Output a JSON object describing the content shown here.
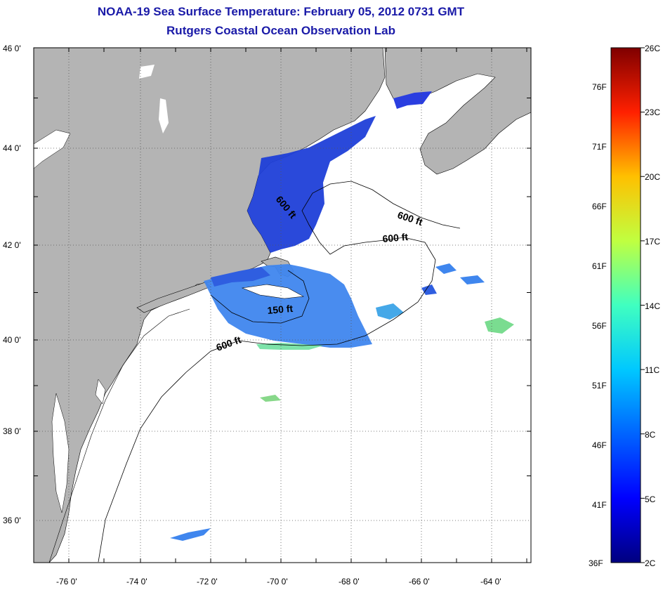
{
  "header": {
    "title": "NOAA-19 Sea Surface Temperature:  February 05, 2012 0731 GMT",
    "subtitle": "Rutgers Coastal Ocean Observation Lab"
  },
  "map": {
    "lat_labels": [
      "46 0'",
      "44 0'",
      "42 0'",
      "40 0'",
      "38 0'",
      "36 0'"
    ],
    "lon_labels": [
      "-76 0'",
      "-74 0'",
      "-72 0'",
      "-70 0'",
      "-68 0'",
      "-66 0'",
      "-64 0'"
    ],
    "contour_labels": [
      "600 ft",
      "600 ft",
      "600 ft",
      "150 ft",
      "600 ft"
    ],
    "colors": {
      "land": "#b4b4b4",
      "ocean": "#ffffff",
      "grid": "#555555"
    }
  },
  "colorbar": {
    "celsius": [
      "26C",
      "23C",
      "20C",
      "17C",
      "14C",
      "11C",
      "8C",
      "5C",
      "2C"
    ],
    "fahrenheit": [
      "76F",
      "71F",
      "66F",
      "61F",
      "56F",
      "51F",
      "46F",
      "41F",
      "36F"
    ],
    "colors": [
      "#00007f",
      "#0000ff",
      "#007fff",
      "#00ffff",
      "#7fff7f",
      "#ffff00",
      "#ff7f00",
      "#ff0000",
      "#7f0000"
    ]
  }
}
